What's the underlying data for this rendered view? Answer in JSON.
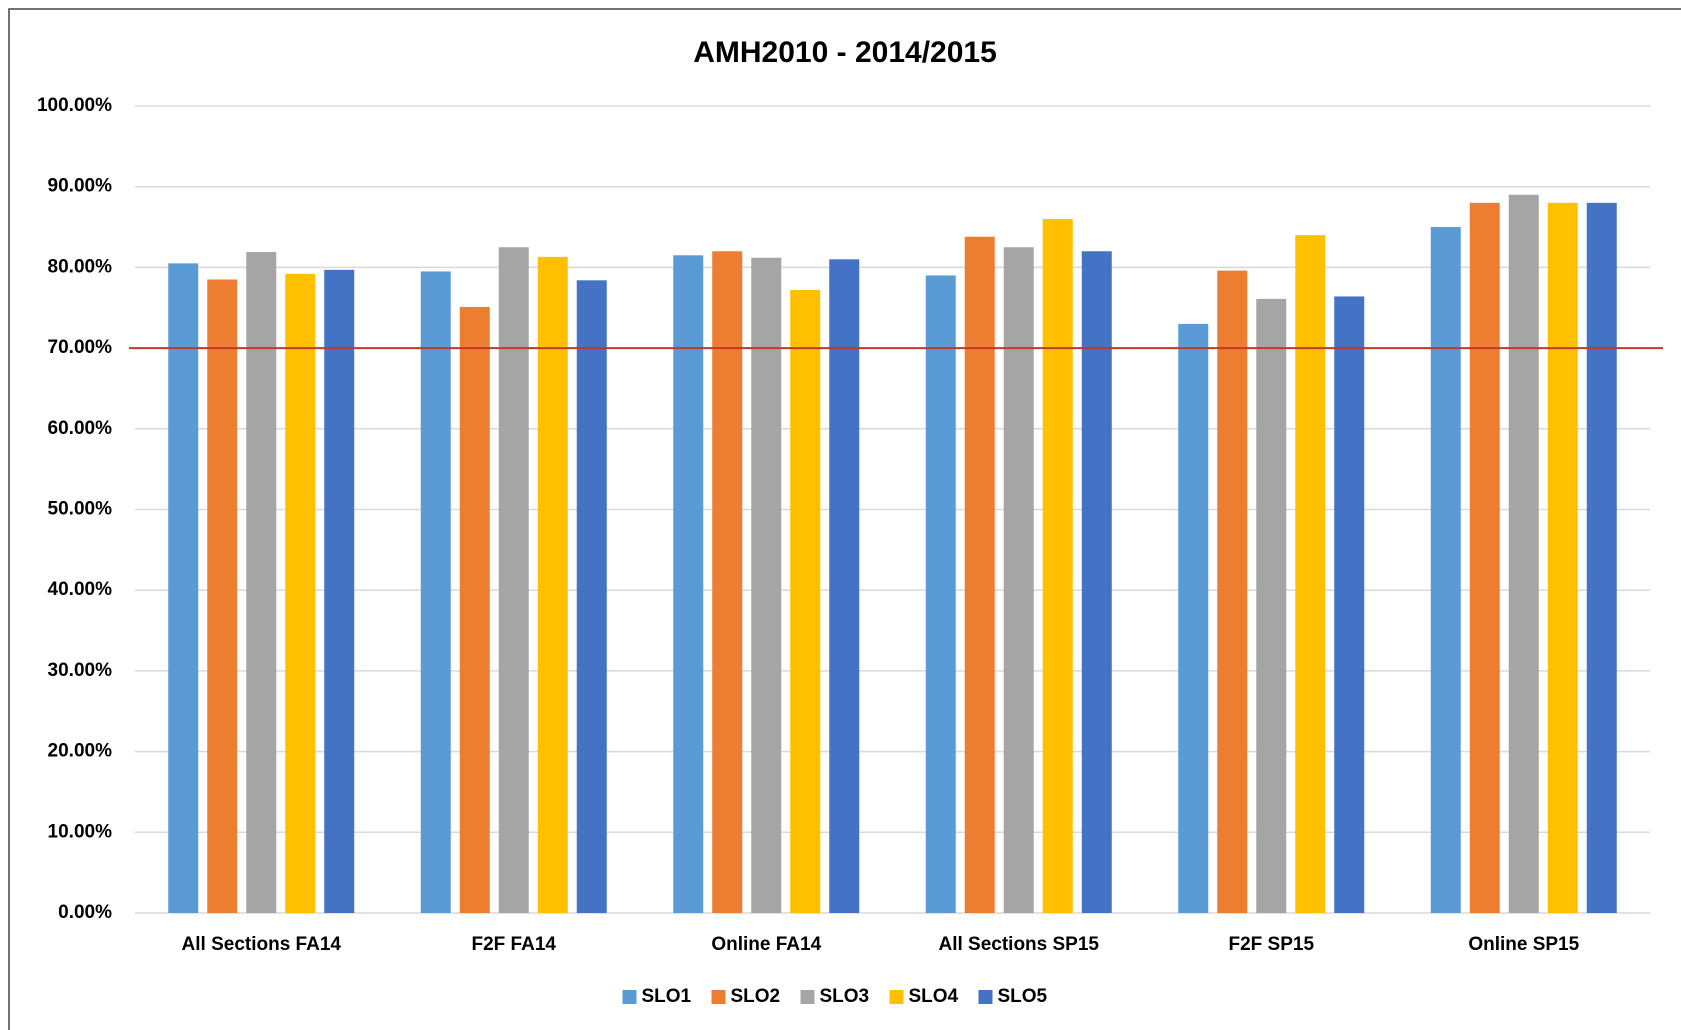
{
  "chart_data": {
    "type": "bar",
    "title": "AMH2010 - 2014/2015",
    "categories": [
      "All Sections FA14",
      "F2F FA14",
      "Online FA14",
      "All Sections SP15",
      "F2F SP15",
      "Online SP15"
    ],
    "series": [
      {
        "name": "SLO1",
        "color": "#5b9bd5",
        "values": [
          80.5,
          79.5,
          81.5,
          79,
          73,
          85
        ]
      },
      {
        "name": "SLO2",
        "color": "#ed7d31",
        "values": [
          78.5,
          75.1,
          82,
          83.8,
          79.6,
          88
        ]
      },
      {
        "name": "SLO3",
        "color": "#a5a5a5",
        "values": [
          81.9,
          82.5,
          81.2,
          82.5,
          76.1,
          89
        ]
      },
      {
        "name": "SLO4",
        "color": "#ffc000",
        "values": [
          79.2,
          81.3,
          77.2,
          86,
          84,
          88
        ]
      },
      {
        "name": "SLO5",
        "color": "#4472c4",
        "values": [
          79.7,
          78.4,
          81,
          82,
          76.4,
          88
        ]
      }
    ],
    "ylim": [
      0,
      100
    ],
    "yticks": [
      {
        "value": 0,
        "label": "0.00%"
      },
      {
        "value": 10,
        "label": "10.00%"
      },
      {
        "value": 20,
        "label": "20.00%"
      },
      {
        "value": 30,
        "label": "30.00%"
      },
      {
        "value": 40,
        "label": "40.00%"
      },
      {
        "value": 50,
        "label": "50.00%"
      },
      {
        "value": 60,
        "label": "60.00%"
      },
      {
        "value": 70,
        "label": "70.00%"
      },
      {
        "value": 80,
        "label": "80.00%"
      },
      {
        "value": 90,
        "label": "90.00%"
      },
      {
        "value": 100,
        "label": "100.00%"
      }
    ],
    "grid": true,
    "reference_line": {
      "value": 70,
      "color": "#c0392b"
    },
    "legend": "bottom"
  }
}
